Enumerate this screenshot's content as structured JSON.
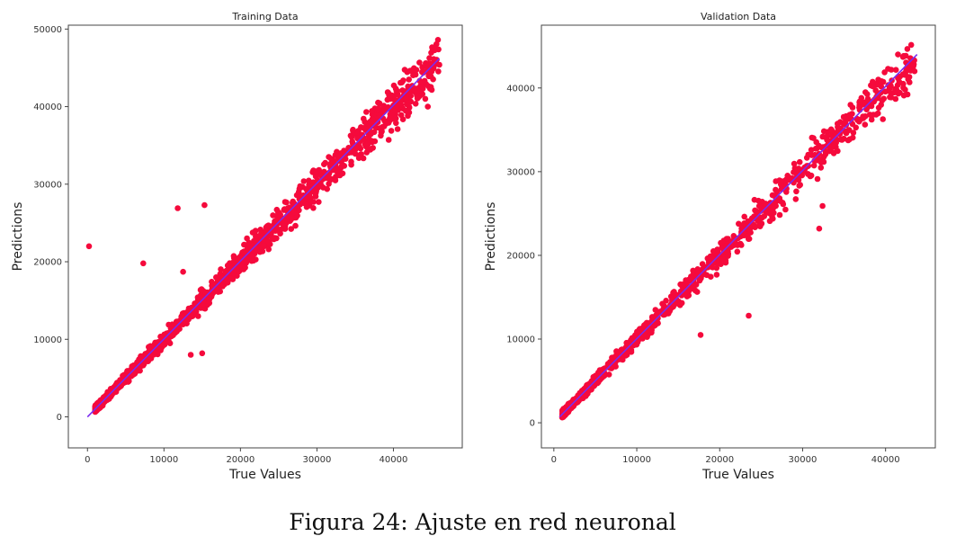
{
  "chart_data": [
    {
      "type": "scatter",
      "title": "Training Data",
      "xlabel": "True Values",
      "ylabel": "Predictions",
      "xlim": [
        -2500,
        49000
      ],
      "ylim": [
        -4000,
        50500
      ],
      "xticks": [
        0,
        10000,
        20000,
        30000,
        40000
      ],
      "yticks": [
        0,
        10000,
        20000,
        30000,
        40000,
        50000
      ],
      "grid": false,
      "point_color": "#f50a3c",
      "line_color": "#7b2cf0",
      "reference_line": {
        "x": [
          0,
          46000
        ],
        "y": [
          0,
          46200
        ]
      },
      "points": {
        "range": [
          1000,
          46000
        ],
        "spread": 0.07,
        "outliers": [
          [
            200,
            22000
          ],
          [
            7300,
            19800
          ],
          [
            11800,
            26900
          ],
          [
            12500,
            18700
          ],
          [
            15300,
            27300
          ],
          [
            13500,
            8000
          ],
          [
            15000,
            8200
          ],
          [
            44500,
            40000
          ],
          [
            45200,
            45100
          ],
          [
            46000,
            45400
          ]
        ]
      }
    },
    {
      "type": "scatter",
      "title": "Validation Data",
      "xlabel": "True Values",
      "ylabel": "Predictions",
      "xlim": [
        -1500,
        46000
      ],
      "ylim": [
        -3000,
        47500
      ],
      "xticks": [
        0,
        10000,
        20000,
        30000,
        40000
      ],
      "yticks": [
        0,
        10000,
        20000,
        30000,
        40000
      ],
      "grid": false,
      "point_color": "#f50a3c",
      "line_color": "#7b2cf0",
      "reference_line": {
        "x": [
          700,
          43800
        ],
        "y": [
          700,
          44000
        ]
      },
      "points": {
        "range": [
          1000,
          43500
        ],
        "spread": 0.07,
        "outliers": [
          [
            23500,
            12800
          ],
          [
            32000,
            23200
          ],
          [
            32400,
            25900
          ],
          [
            17700,
            10500
          ],
          [
            41500,
            44000
          ],
          [
            43500,
            42000
          ]
        ]
      }
    }
  ],
  "caption": "Figura 24: Ajuste en red neuronal"
}
